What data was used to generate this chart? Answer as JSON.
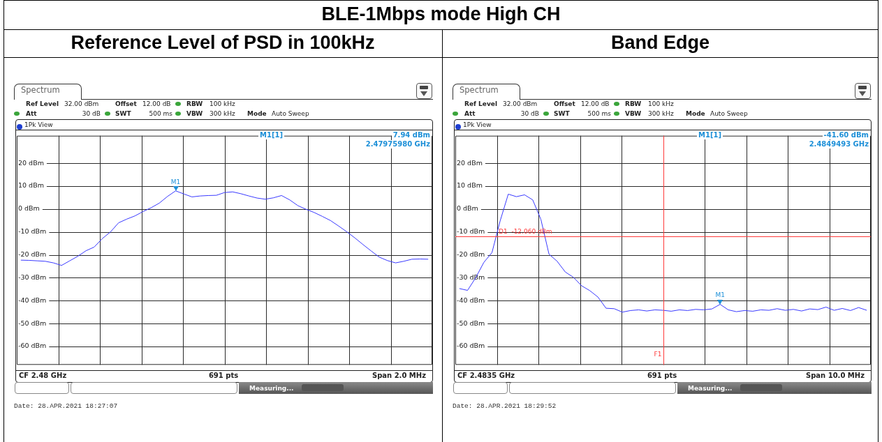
{
  "chart_data": [
    {
      "type": "line",
      "title": "BLE-1Mbps mode High CH",
      "subtitle": "Reference Level of PSD in 100kHz",
      "grid": true,
      "marker": "none",
      "tick_labels": "y",
      "categories": [
        null,
        null,
        null,
        null,
        null,
        null,
        null,
        null,
        null,
        null,
        null,
        null,
        null,
        null,
        null,
        null,
        null,
        null,
        null,
        null,
        null,
        null,
        null,
        null,
        null,
        null,
        null,
        null,
        null,
        null,
        null,
        null,
        null,
        null,
        null,
        null,
        null,
        null,
        null,
        null,
        null,
        null,
        null,
        null,
        null,
        null,
        null,
        null,
        null,
        null,
        null
      ],
      "series": [
        {
          "color": "#3a3aff",
          "values": [
            -22.3,
            -22.4,
            -22.6,
            -22.8,
            -23.5,
            -24.6,
            -22.6,
            -20.6,
            -18.2,
            -16.6,
            -12.9,
            -10.0,
            -6.0,
            -4.4,
            -3.0,
            -1.1,
            0.6,
            2.6,
            5.5,
            7.94,
            6.6,
            5.3,
            5.7,
            5.9,
            6.0,
            7.2,
            7.5,
            6.7,
            5.7,
            4.8,
            4.3,
            4.9,
            5.9,
            4.0,
            1.5,
            -0.1,
            -1.5,
            -3.2,
            -5.0,
            -7.4,
            -9.9,
            -12.6,
            -15.5,
            -18.3,
            -21.0,
            -22.5,
            -23.5,
            -22.8,
            -21.9,
            -21.8,
            -21.9
          ]
        }
      ],
      "ylim": [
        -68,
        32
      ],
      "yticks": [
        {
          "value": 20,
          "label": "20 dBm"
        },
        {
          "value": 10,
          "label": "10 dBm"
        },
        {
          "value": 0,
          "label": "0 dBm"
        },
        {
          "value": -10,
          "label": "-10 dBm"
        },
        {
          "value": -20,
          "label": "-20 dBm"
        },
        {
          "value": -30,
          "label": "-30 dBm"
        },
        {
          "value": -40,
          "label": "-40 dBm"
        },
        {
          "value": -50,
          "label": "-50 dBm"
        },
        {
          "value": -60,
          "label": "-60 dBm"
        }
      ],
      "annotations": [
        "Spectrum",
        "Ref Level",
        "32.00 dBm",
        "Offset",
        "12.00 dB",
        "RBW",
        "100 kHz",
        "Att",
        "30 dB",
        "SWT",
        "500 ms",
        "VBW",
        "300 kHz",
        "Mode",
        "Auto Sweep",
        "1Pk View",
        "M1[1]",
        "7.94 dBm",
        "2.47975980 GHz",
        "CF 2.48 GHz",
        "691 pts",
        "Span 2.0 MHz",
        "Measuring...",
        "Date: 28.APR.2021  18:27:07",
        {
          "text": "M1",
          "y": 7.94
        }
      ]
    },
    {
      "type": "line",
      "title": "Band Edge",
      "grid": true,
      "marker": "none",
      "tick_labels": "y",
      "categories": [
        null,
        null,
        null,
        null,
        null,
        null,
        null,
        null,
        null,
        null,
        null,
        null,
        null,
        null,
        null,
        null,
        null,
        null,
        null,
        null,
        null,
        null,
        null,
        null,
        null,
        null,
        null,
        null,
        null,
        null,
        null,
        null,
        null,
        null,
        null,
        null,
        null,
        null,
        null,
        null,
        null,
        null,
        null,
        null,
        null,
        null,
        null,
        null,
        null,
        null,
        null
      ],
      "series": [
        {
          "color": "#3a3aff",
          "values": [
            -34.7,
            -35.5,
            -30.0,
            -23.3,
            -19.0,
            -5.2,
            6.5,
            5.4,
            6.2,
            4.0,
            -4.5,
            -19.7,
            -22.8,
            -27.5,
            -29.8,
            -33.5,
            -35.6,
            -38.4,
            -43.3,
            -43.5,
            -45.0,
            -44.3,
            -44.0,
            -44.5,
            -44.0,
            -44.2,
            -44.6,
            -44.0,
            -44.3,
            -43.8,
            -44.0,
            -43.6,
            -41.6,
            -44.0,
            -44.8,
            -44.3,
            -44.6,
            -44.0,
            -44.2,
            -43.5,
            -44.2,
            -43.8,
            -44.5,
            -43.6,
            -43.9,
            -42.8,
            -44.2,
            -43.4,
            -44.3,
            -43.0,
            -44.2
          ]
        }
      ],
      "ylim": [
        -68,
        32
      ],
      "yticks": [
        {
          "value": 20,
          "label": "20 dBm"
        },
        {
          "value": 10,
          "label": "10 dBm"
        },
        {
          "value": 0,
          "label": "0 dBm"
        },
        {
          "value": -10,
          "label": "-10 dBm"
        },
        {
          "value": -20,
          "label": "-20 dBm"
        },
        {
          "value": -30,
          "label": "-30 dBm"
        },
        {
          "value": -40,
          "label": "-40 dBm"
        },
        {
          "value": -50,
          "label": "-50 dBm"
        },
        {
          "value": -60,
          "label": "-60 dBm"
        }
      ],
      "ref_lines": [
        {
          "axis": "y",
          "value": -12.06,
          "label": "D1  -12.060 dBm",
          "color": "#ff3b3b"
        },
        {
          "axis": "x",
          "label": "F1",
          "color": "#ff3b3b"
        }
      ],
      "annotations": [
        "Spectrum",
        "Ref Level",
        "32.00 dBm",
        "Offset",
        "12.00 dB",
        "RBW",
        "100 kHz",
        "Att",
        "30 dB",
        "SWT",
        "500 ms",
        "VBW",
        "300 kHz",
        "Mode",
        "Auto Sweep",
        "1Pk View",
        "M1[1]",
        "-41.60 dBm",
        "2.4849493 GHz",
        "CF 2.4835 GHz",
        "691 pts",
        "Span 10.0 MHz",
        "Measuring...",
        "Date: 28.APR.2021  18:29:52",
        {
          "text": "M1",
          "y": -41.6
        }
      ]
    }
  ]
}
